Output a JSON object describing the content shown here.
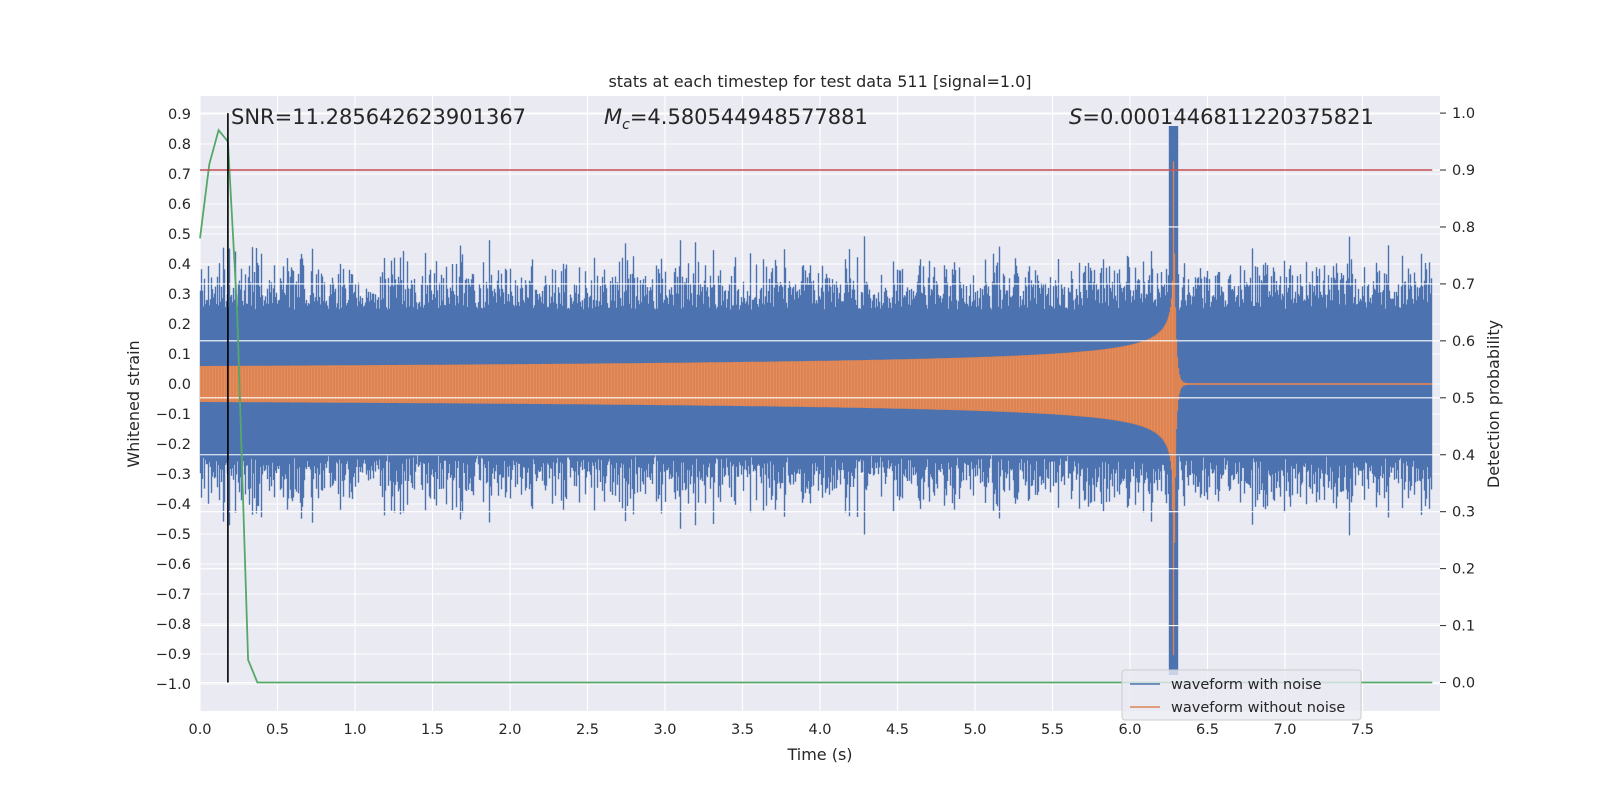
{
  "chart_data": {
    "type": "line",
    "title": "stats at each timestep for test data 511 [signal=1.0]",
    "xlabel": "Time (s)",
    "ylabel_left": "Whitened strain",
    "ylabel_right": "Detection probability",
    "xlim": [
      0.0,
      8.0
    ],
    "ylim_left": [
      -1.09,
      0.96
    ],
    "ylim_right": [
      -0.05,
      1.03
    ],
    "x_ticks": [
      "0.0",
      "0.5",
      "1.0",
      "1.5",
      "2.0",
      "2.5",
      "3.0",
      "3.5",
      "4.0",
      "4.5",
      "5.0",
      "5.5",
      "6.0",
      "6.5",
      "7.0",
      "7.5"
    ],
    "y_ticks_left": [
      "0.9",
      "0.8",
      "0.7",
      "0.6",
      "0.5",
      "0.4",
      "0.3",
      "0.2",
      "0.1",
      "0.0",
      "−0.1",
      "−0.2",
      "−0.3",
      "−0.4",
      "−0.5",
      "−0.6",
      "−0.7",
      "−0.8",
      "−0.9",
      "−1.0"
    ],
    "y_ticks_right": [
      "0.0",
      "0.1",
      "0.2",
      "0.3",
      "0.4",
      "0.5",
      "0.6",
      "0.7",
      "0.8",
      "0.9",
      "1.0"
    ],
    "grid": true,
    "legend_position": "lower-right",
    "annotations": {
      "snr": "SNR=11.285642623901367",
      "mc_symbol": "M",
      "mc_sub": "c",
      "mc_value": "=4.580544948577881",
      "s_symbol": "S",
      "s_value": "=0.0001446811220375821"
    },
    "threshold": {
      "value_right": 0.9,
      "color": "#c44e52"
    },
    "detection_marker": {
      "x": 0.18,
      "color": "#000000"
    },
    "series": [
      {
        "name": "waveform with noise",
        "color": "#4c72b0",
        "description_envelope": {
          "baseline_amplitude": 0.4,
          "peak_time": 6.28,
          "peak_max": 0.86,
          "peak_min": -0.97
        }
      },
      {
        "name": "waveform without noise",
        "color": "#dd8452",
        "description_envelope": {
          "start_amplitude": 0.06,
          "peak_time": 6.28,
          "peak_max": 0.78,
          "peak_min": -0.95,
          "post_merger_amplitude": 0.0
        }
      },
      {
        "name": "detection probability",
        "color": "#55a868",
        "axis": "right",
        "x": [
          0.0,
          0.06,
          0.12,
          0.18,
          0.24,
          0.31,
          0.37,
          0.5,
          1.0,
          2.0,
          3.0,
          4.0,
          5.0,
          6.0,
          7.0,
          7.95
        ],
        "values": [
          0.78,
          0.91,
          0.97,
          0.95,
          0.65,
          0.04,
          0.0,
          0.0,
          0.0,
          0.0,
          0.0,
          0.0,
          0.0,
          0.0,
          0.0,
          0.0
        ]
      }
    ]
  }
}
